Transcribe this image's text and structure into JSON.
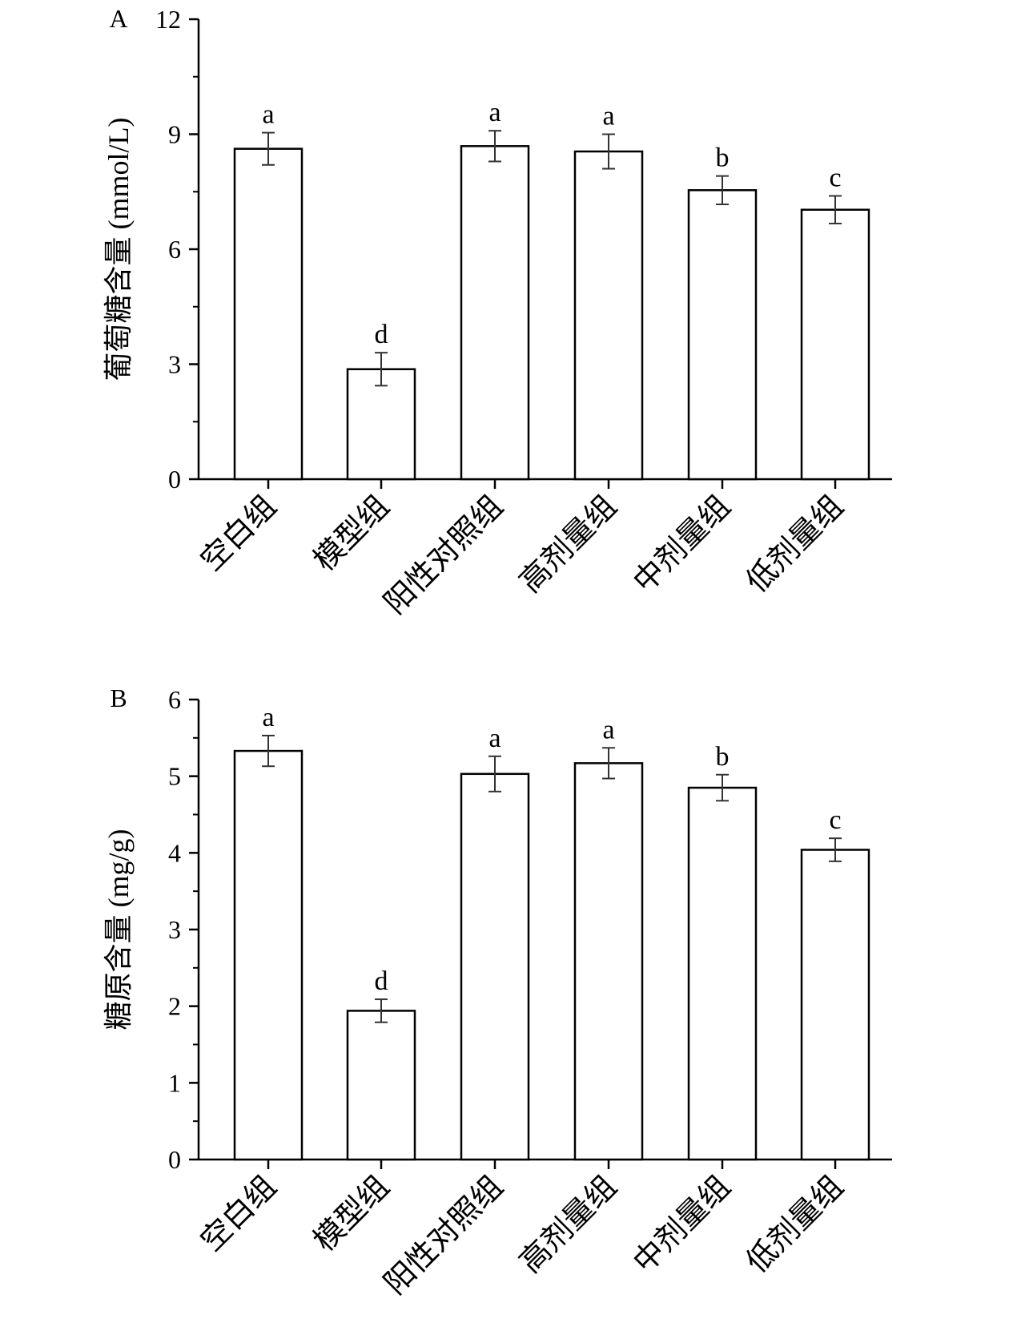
{
  "chart_data": [
    {
      "type": "bar",
      "panel_label": "A",
      "title": "",
      "xlabel": "",
      "ylabel": "葡萄糖含量 (mmol/L)",
      "ylim": [
        0,
        12
      ],
      "yticks": [
        0,
        3,
        6,
        9,
        12
      ],
      "categories": [
        "空白组",
        "模型组",
        "阳性对照组",
        "高剂量组",
        "中剂量组",
        "低剂量组"
      ],
      "values": [
        8.62,
        2.87,
        8.69,
        8.55,
        7.54,
        7.03
      ],
      "errors": [
        0.42,
        0.43,
        0.4,
        0.45,
        0.37,
        0.36
      ],
      "significance": [
        "a",
        "d",
        "a",
        "a",
        "b",
        "c"
      ],
      "bar_fill": "#ffffff",
      "bar_stroke": "#000000",
      "grid": false
    },
    {
      "type": "bar",
      "panel_label": "B",
      "title": "",
      "xlabel": "",
      "ylabel": "糖原含量 (mg/g)",
      "ylim": [
        0,
        6
      ],
      "yticks": [
        0,
        1,
        2,
        3,
        4,
        5,
        6
      ],
      "categories": [
        "空白组",
        "模型组",
        "阳性对照组",
        "高剂量组",
        "中剂量组",
        "低剂量组"
      ],
      "values": [
        5.33,
        1.94,
        5.03,
        5.17,
        4.85,
        4.04
      ],
      "errors": [
        0.2,
        0.15,
        0.23,
        0.2,
        0.17,
        0.15
      ],
      "significance": [
        "a",
        "d",
        "a",
        "a",
        "b",
        "c"
      ],
      "bar_fill": "#ffffff",
      "bar_stroke": "#000000",
      "grid": false
    }
  ]
}
